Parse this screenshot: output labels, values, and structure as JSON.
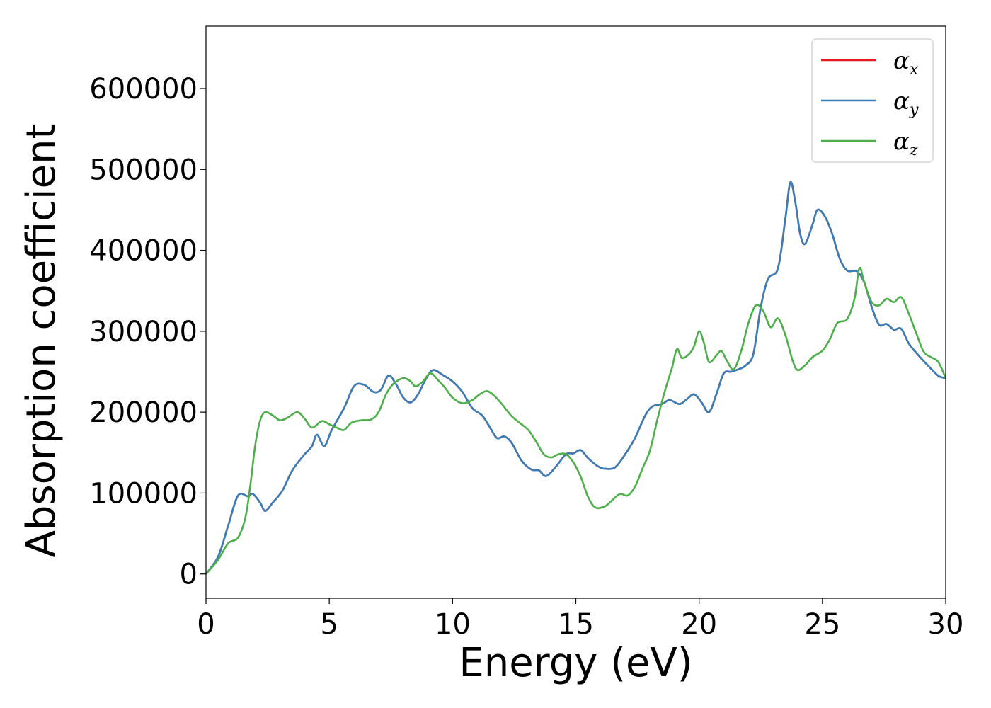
{
  "chart_data": {
    "type": "line",
    "title": "",
    "xlabel": "Energy (eV)",
    "ylabel": "Absorption coefficient",
    "xlim": [
      0,
      30
    ],
    "ylim": [
      -30000,
      677000
    ],
    "xticks": [
      0,
      5,
      10,
      15,
      20,
      25,
      30
    ],
    "yticks": [
      0,
      100000,
      200000,
      300000,
      400000,
      500000,
      600000
    ],
    "xtick_labels": [
      "0",
      "5",
      "10",
      "15",
      "20",
      "25",
      "30"
    ],
    "ytick_labels": [
      "0",
      "100000",
      "200000",
      "300000",
      "400000",
      "500000",
      "600000"
    ],
    "grid": false,
    "legend_position": "top-right",
    "series": [
      {
        "name": "αx",
        "base": "α",
        "sub": "x",
        "color": "#e41a1c",
        "points": [
          [
            0,
            0
          ],
          [
            0.5,
            22000
          ],
          [
            0.9,
            60000
          ],
          [
            1.3,
            97000
          ],
          [
            1.7,
            96000
          ],
          [
            1.9,
            99000
          ],
          [
            2.2,
            88000
          ],
          [
            2.4,
            78000
          ],
          [
            2.7,
            88000
          ],
          [
            3.1,
            103000
          ],
          [
            3.5,
            128000
          ],
          [
            4.0,
            148000
          ],
          [
            4.3,
            158000
          ],
          [
            4.5,
            172000
          ],
          [
            4.8,
            158000
          ],
          [
            5.1,
            178000
          ],
          [
            5.6,
            205000
          ],
          [
            6.0,
            232000
          ],
          [
            6.4,
            234000
          ],
          [
            6.8,
            225000
          ],
          [
            7.1,
            228000
          ],
          [
            7.4,
            245000
          ],
          [
            7.7,
            235000
          ],
          [
            8.0,
            218000
          ],
          [
            8.3,
            212000
          ],
          [
            8.6,
            222000
          ],
          [
            8.9,
            240000
          ],
          [
            9.2,
            252000
          ],
          [
            9.6,
            246000
          ],
          [
            10.0,
            238000
          ],
          [
            10.4,
            225000
          ],
          [
            10.8,
            205000
          ],
          [
            11.2,
            196000
          ],
          [
            11.5,
            182000
          ],
          [
            11.8,
            168000
          ],
          [
            12.1,
            170000
          ],
          [
            12.4,
            162000
          ],
          [
            12.8,
            140000
          ],
          [
            13.2,
            129000
          ],
          [
            13.5,
            128000
          ],
          [
            13.8,
            121000
          ],
          [
            14.2,
            133000
          ],
          [
            14.6,
            148000
          ],
          [
            14.9,
            149000
          ],
          [
            15.2,
            153000
          ],
          [
            15.5,
            143000
          ],
          [
            15.9,
            133000
          ],
          [
            16.2,
            130000
          ],
          [
            16.6,
            132000
          ],
          [
            17.0,
            148000
          ],
          [
            17.4,
            168000
          ],
          [
            17.8,
            195000
          ],
          [
            18.1,
            207000
          ],
          [
            18.5,
            210000
          ],
          [
            18.8,
            215000
          ],
          [
            19.2,
            210000
          ],
          [
            19.5,
            216000
          ],
          [
            19.8,
            222000
          ],
          [
            20.1,
            212000
          ],
          [
            20.4,
            200000
          ],
          [
            20.7,
            222000
          ],
          [
            21.0,
            248000
          ],
          [
            21.3,
            250000
          ],
          [
            21.6,
            253000
          ],
          [
            21.9,
            258000
          ],
          [
            22.2,
            272000
          ],
          [
            22.5,
            330000
          ],
          [
            22.8,
            365000
          ],
          [
            23.2,
            378000
          ],
          [
            23.5,
            440000
          ],
          [
            23.7,
            484000
          ],
          [
            23.9,
            460000
          ],
          [
            24.1,
            420000
          ],
          [
            24.3,
            408000
          ],
          [
            24.6,
            432000
          ],
          [
            24.8,
            450000
          ],
          [
            25.1,
            442000
          ],
          [
            25.4,
            420000
          ],
          [
            25.7,
            390000
          ],
          [
            26.0,
            375000
          ],
          [
            26.4,
            374000
          ],
          [
            26.7,
            360000
          ],
          [
            27.0,
            330000
          ],
          [
            27.3,
            308000
          ],
          [
            27.6,
            309000
          ],
          [
            27.9,
            302000
          ],
          [
            28.2,
            303000
          ],
          [
            28.5,
            285000
          ],
          [
            28.9,
            270000
          ],
          [
            29.3,
            257000
          ],
          [
            29.7,
            245000
          ],
          [
            30.0,
            242000
          ]
        ]
      },
      {
        "name": "αy",
        "base": "α",
        "sub": "y",
        "color": "#377eb8",
        "points": [
          [
            0,
            0
          ],
          [
            0.5,
            22000
          ],
          [
            0.9,
            60000
          ],
          [
            1.3,
            97000
          ],
          [
            1.7,
            96000
          ],
          [
            1.9,
            99000
          ],
          [
            2.2,
            88000
          ],
          [
            2.4,
            78000
          ],
          [
            2.7,
            88000
          ],
          [
            3.1,
            103000
          ],
          [
            3.5,
            128000
          ],
          [
            4.0,
            148000
          ],
          [
            4.3,
            158000
          ],
          [
            4.5,
            172000
          ],
          [
            4.8,
            158000
          ],
          [
            5.1,
            178000
          ],
          [
            5.6,
            205000
          ],
          [
            6.0,
            232000
          ],
          [
            6.4,
            234000
          ],
          [
            6.8,
            225000
          ],
          [
            7.1,
            228000
          ],
          [
            7.4,
            245000
          ],
          [
            7.7,
            235000
          ],
          [
            8.0,
            218000
          ],
          [
            8.3,
            212000
          ],
          [
            8.6,
            222000
          ],
          [
            8.9,
            240000
          ],
          [
            9.2,
            252000
          ],
          [
            9.6,
            246000
          ],
          [
            10.0,
            238000
          ],
          [
            10.4,
            225000
          ],
          [
            10.8,
            205000
          ],
          [
            11.2,
            196000
          ],
          [
            11.5,
            182000
          ],
          [
            11.8,
            168000
          ],
          [
            12.1,
            170000
          ],
          [
            12.4,
            162000
          ],
          [
            12.8,
            140000
          ],
          [
            13.2,
            129000
          ],
          [
            13.5,
            128000
          ],
          [
            13.8,
            121000
          ],
          [
            14.2,
            133000
          ],
          [
            14.6,
            148000
          ],
          [
            14.9,
            149000
          ],
          [
            15.2,
            153000
          ],
          [
            15.5,
            143000
          ],
          [
            15.9,
            133000
          ],
          [
            16.2,
            130000
          ],
          [
            16.6,
            132000
          ],
          [
            17.0,
            148000
          ],
          [
            17.4,
            168000
          ],
          [
            17.8,
            195000
          ],
          [
            18.1,
            207000
          ],
          [
            18.5,
            210000
          ],
          [
            18.8,
            215000
          ],
          [
            19.2,
            210000
          ],
          [
            19.5,
            216000
          ],
          [
            19.8,
            222000
          ],
          [
            20.1,
            212000
          ],
          [
            20.4,
            200000
          ],
          [
            20.7,
            222000
          ],
          [
            21.0,
            248000
          ],
          [
            21.3,
            250000
          ],
          [
            21.6,
            253000
          ],
          [
            21.9,
            258000
          ],
          [
            22.2,
            272000
          ],
          [
            22.5,
            330000
          ],
          [
            22.8,
            365000
          ],
          [
            23.2,
            378000
          ],
          [
            23.5,
            440000
          ],
          [
            23.7,
            484000
          ],
          [
            23.9,
            460000
          ],
          [
            24.1,
            420000
          ],
          [
            24.3,
            408000
          ],
          [
            24.6,
            432000
          ],
          [
            24.8,
            450000
          ],
          [
            25.1,
            442000
          ],
          [
            25.4,
            420000
          ],
          [
            25.7,
            390000
          ],
          [
            26.0,
            375000
          ],
          [
            26.4,
            374000
          ],
          [
            26.7,
            360000
          ],
          [
            27.0,
            330000
          ],
          [
            27.3,
            308000
          ],
          [
            27.6,
            309000
          ],
          [
            27.9,
            302000
          ],
          [
            28.2,
            303000
          ],
          [
            28.5,
            285000
          ],
          [
            28.9,
            270000
          ],
          [
            29.3,
            257000
          ],
          [
            29.7,
            245000
          ],
          [
            30.0,
            242000
          ]
        ]
      },
      {
        "name": "αz",
        "base": "α",
        "sub": "z",
        "color": "#4daf4a",
        "points": [
          [
            0,
            0
          ],
          [
            0.5,
            18000
          ],
          [
            0.9,
            38000
          ],
          [
            1.3,
            45000
          ],
          [
            1.6,
            70000
          ],
          [
            1.8,
            110000
          ],
          [
            2.0,
            160000
          ],
          [
            2.2,
            190000
          ],
          [
            2.4,
            200000
          ],
          [
            2.7,
            196000
          ],
          [
            3.0,
            190000
          ],
          [
            3.3,
            193000
          ],
          [
            3.7,
            200000
          ],
          [
            4.0,
            192000
          ],
          [
            4.3,
            181000
          ],
          [
            4.7,
            189000
          ],
          [
            5.0,
            185000
          ],
          [
            5.3,
            181000
          ],
          [
            5.6,
            178000
          ],
          [
            5.9,
            187000
          ],
          [
            6.3,
            190000
          ],
          [
            6.7,
            191000
          ],
          [
            7.0,
            200000
          ],
          [
            7.3,
            222000
          ],
          [
            7.6,
            235000
          ],
          [
            8.0,
            242000
          ],
          [
            8.3,
            238000
          ],
          [
            8.5,
            232000
          ],
          [
            8.8,
            238000
          ],
          [
            9.1,
            248000
          ],
          [
            9.4,
            240000
          ],
          [
            9.7,
            230000
          ],
          [
            10.0,
            218000
          ],
          [
            10.4,
            211000
          ],
          [
            10.8,
            215000
          ],
          [
            11.1,
            222000
          ],
          [
            11.4,
            226000
          ],
          [
            11.7,
            220000
          ],
          [
            12.0,
            210000
          ],
          [
            12.4,
            195000
          ],
          [
            12.8,
            185000
          ],
          [
            13.1,
            177000
          ],
          [
            13.4,
            163000
          ],
          [
            13.7,
            148000
          ],
          [
            14.0,
            144000
          ],
          [
            14.3,
            148000
          ],
          [
            14.6,
            148000
          ],
          [
            14.9,
            138000
          ],
          [
            15.2,
            120000
          ],
          [
            15.5,
            95000
          ],
          [
            15.8,
            82000
          ],
          [
            16.2,
            84000
          ],
          [
            16.5,
            92000
          ],
          [
            16.8,
            99000
          ],
          [
            17.1,
            97000
          ],
          [
            17.4,
            108000
          ],
          [
            17.7,
            130000
          ],
          [
            18.0,
            152000
          ],
          [
            18.3,
            190000
          ],
          [
            18.6,
            225000
          ],
          [
            18.9,
            255000
          ],
          [
            19.1,
            278000
          ],
          [
            19.3,
            267000
          ],
          [
            19.6,
            272000
          ],
          [
            19.8,
            282000
          ],
          [
            20.0,
            300000
          ],
          [
            20.2,
            285000
          ],
          [
            20.4,
            262000
          ],
          [
            20.7,
            270000
          ],
          [
            20.9,
            276000
          ],
          [
            21.1,
            265000
          ],
          [
            21.4,
            253000
          ],
          [
            21.7,
            275000
          ],
          [
            22.0,
            310000
          ],
          [
            22.3,
            332000
          ],
          [
            22.6,
            325000
          ],
          [
            22.9,
            305000
          ],
          [
            23.2,
            316000
          ],
          [
            23.5,
            295000
          ],
          [
            23.8,
            263000
          ],
          [
            24.0,
            252000
          ],
          [
            24.3,
            258000
          ],
          [
            24.6,
            268000
          ],
          [
            25.0,
            276000
          ],
          [
            25.3,
            290000
          ],
          [
            25.6,
            310000
          ],
          [
            26.0,
            315000
          ],
          [
            26.3,
            340000
          ],
          [
            26.5,
            378000
          ],
          [
            26.7,
            360000
          ],
          [
            27.0,
            336000
          ],
          [
            27.3,
            332000
          ],
          [
            27.6,
            340000
          ],
          [
            27.9,
            336000
          ],
          [
            28.2,
            342000
          ],
          [
            28.5,
            322000
          ],
          [
            28.8,
            298000
          ],
          [
            29.1,
            275000
          ],
          [
            29.4,
            268000
          ],
          [
            29.7,
            262000
          ],
          [
            30.0,
            242000
          ]
        ]
      }
    ]
  }
}
